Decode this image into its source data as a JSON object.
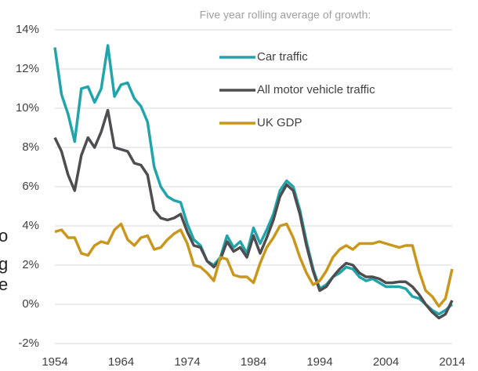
{
  "chart_data": {
    "type": "line",
    "subtitle": "Five year rolling average of growth:",
    "x": [
      1954,
      1955,
      1956,
      1957,
      1958,
      1959,
      1960,
      1961,
      1962,
      1963,
      1964,
      1965,
      1966,
      1967,
      1968,
      1969,
      1970,
      1971,
      1972,
      1973,
      1974,
      1975,
      1976,
      1977,
      1978,
      1979,
      1980,
      1981,
      1982,
      1983,
      1984,
      1985,
      1986,
      1987,
      1988,
      1989,
      1990,
      1991,
      1992,
      1993,
      1994,
      1995,
      1996,
      1997,
      1998,
      1999,
      2000,
      2001,
      2002,
      2003,
      2004,
      2005,
      2006,
      2007,
      2008,
      2009,
      2010,
      2011,
      2012,
      2013,
      2014
    ],
    "series": [
      {
        "name": "Car traffic",
        "color": "#21a5ab",
        "values": [
          13.1,
          10.7,
          9.7,
          8.3,
          11.0,
          11.1,
          10.3,
          11.0,
          13.2,
          10.6,
          11.2,
          11.3,
          10.5,
          10.1,
          9.3,
          7.0,
          6.0,
          5.5,
          5.3,
          5.2,
          4.1,
          3.3,
          3.0,
          2.2,
          2.0,
          2.4,
          3.5,
          2.9,
          3.2,
          2.6,
          3.9,
          3.1,
          3.8,
          4.6,
          5.8,
          6.3,
          6.0,
          4.8,
          3.2,
          1.8,
          0.8,
          1.0,
          1.4,
          1.6,
          1.9,
          1.8,
          1.4,
          1.2,
          1.3,
          1.1,
          0.9,
          0.9,
          0.9,
          0.8,
          0.4,
          0.3,
          0.0,
          -0.3,
          -0.5,
          -0.3,
          0.0
        ]
      },
      {
        "name": "All motor vehicle traffic",
        "color": "#4e4e50",
        "values": [
          8.5,
          7.8,
          6.6,
          5.8,
          7.6,
          8.5,
          8.0,
          8.8,
          9.9,
          8.0,
          7.9,
          7.8,
          7.2,
          7.1,
          6.6,
          4.8,
          4.4,
          4.3,
          4.4,
          4.6,
          3.7,
          3.0,
          2.9,
          2.2,
          1.9,
          2.3,
          3.2,
          2.7,
          2.9,
          2.4,
          3.5,
          2.6,
          3.4,
          4.3,
          5.5,
          6.1,
          5.8,
          4.6,
          3.0,
          1.7,
          0.7,
          0.9,
          1.4,
          1.8,
          2.1,
          2.0,
          1.6,
          1.4,
          1.4,
          1.3,
          1.1,
          1.1,
          1.15,
          1.15,
          0.9,
          0.5,
          0.0,
          -0.4,
          -0.7,
          -0.5,
          0.2
        ]
      },
      {
        "name": "UK GDP",
        "color": "#c9971c",
        "values": [
          3.7,
          3.8,
          3.4,
          3.4,
          2.6,
          2.5,
          3.0,
          3.2,
          3.1,
          3.8,
          4.1,
          3.3,
          3.0,
          3.4,
          3.5,
          2.8,
          2.9,
          3.3,
          3.6,
          3.8,
          3.1,
          2.0,
          1.9,
          1.6,
          1.2,
          2.4,
          2.3,
          1.5,
          1.4,
          1.4,
          1.1,
          2.1,
          2.9,
          3.4,
          4.0,
          4.1,
          3.4,
          2.4,
          1.6,
          1.0,
          1.2,
          1.7,
          2.4,
          2.8,
          3.0,
          2.8,
          3.1,
          3.1,
          3.1,
          3.2,
          3.1,
          3.0,
          2.9,
          3.0,
          3.0,
          1.7,
          0.7,
          0.4,
          -0.1,
          0.3,
          1.8
        ]
      }
    ],
    "xlim": [
      1954,
      2014
    ],
    "xticks": [
      1954,
      1964,
      1974,
      1984,
      1994,
      2004,
      2014
    ],
    "ylim": [
      -2,
      14
    ],
    "yticks": [
      {
        "value": -2,
        "label": "-2%"
      },
      {
        "value": 0,
        "label": "0%"
      },
      {
        "value": 2,
        "label": "2%"
      },
      {
        "value": 4,
        "label": "4%"
      },
      {
        "value": 6,
        "label": "6%"
      },
      {
        "value": 8,
        "label": "8%"
      },
      {
        "value": 10,
        "label": "10%"
      },
      {
        "value": 12,
        "label": "12%"
      },
      {
        "value": 14,
        "label": "14%"
      }
    ],
    "grid": true
  },
  "cropped_fragments": [
    "o",
    "g",
    "e"
  ]
}
